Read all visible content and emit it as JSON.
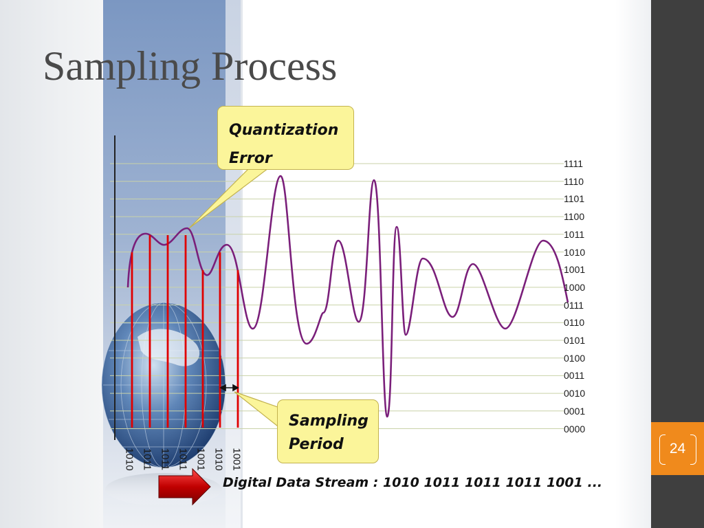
{
  "title": "Sampling Process",
  "slide_number": "24",
  "callouts": {
    "quantization_line1": "Quantization",
    "quantization_line2": "Error",
    "sampling_line1": "Sampling",
    "sampling_line2": "Period"
  },
  "digital_stream": "Digital Data Stream : 1010 1011 1011 1011 1001 ...",
  "quantization_levels": [
    "1111",
    "1110",
    "1101",
    "1100",
    "1011",
    "1010",
    "1001",
    "1000",
    "0111",
    "0110",
    "0101",
    "0100",
    "0011",
    "0010",
    "0001",
    "0000"
  ],
  "sample_codes": [
    "1010",
    "1011",
    "1011",
    "1011",
    "1001",
    "1010",
    "1001"
  ],
  "colors": {
    "waveform": "#7a1f7a",
    "sample_lines": "#e00000",
    "callout_fill": "#fbf59a",
    "accent_orange": "#f08a1c",
    "right_bar": "#3f3f3f",
    "arrow_red": "#c00000"
  },
  "icons": {
    "globe": "globe-icon",
    "arrow": "right-arrow-icon"
  }
}
